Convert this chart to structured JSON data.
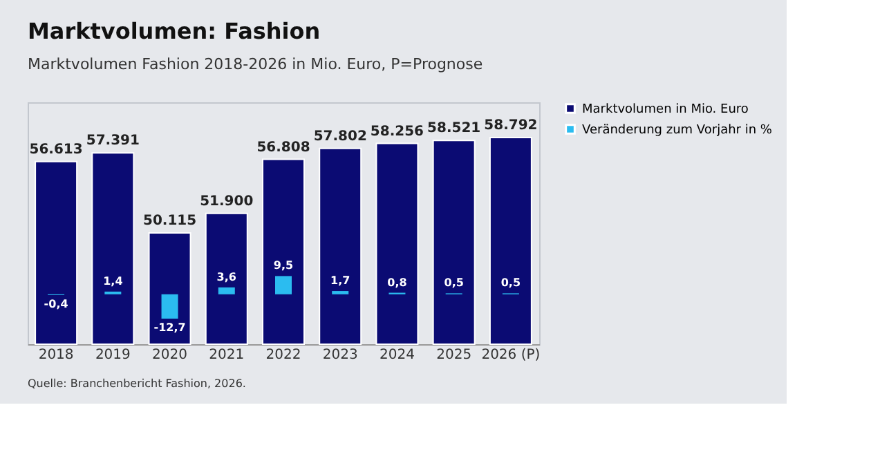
{
  "chart_data": {
    "type": "bar",
    "title": "Marktvolumen: Fashion",
    "subtitle": "Marktvolumen Fashion 2018-2026 in Mio. Euro, P=Prognose",
    "categories": [
      "2018",
      "2019",
      "2020",
      "2021",
      "2022",
      "2023",
      "2024",
      "2025",
      "2026 (P)"
    ],
    "series": [
      {
        "name": "Marktvolumen in Mio. Euro",
        "color": "#0b0b73",
        "values": [
          56613,
          57391,
          50115,
          51900,
          56808,
          57802,
          58256,
          58521,
          58792
        ],
        "value_labels": [
          "56.613",
          "57.391",
          "50.115",
          "51.900",
          "56.808",
          "57.802",
          "58.256",
          "58.521",
          "58.792"
        ]
      },
      {
        "name": "Veränderung zum Vorjahr in %",
        "color": "#2bbcf0",
        "axis": "y2",
        "values": [
          -0.4,
          1.4,
          -12.7,
          3.6,
          9.5,
          1.7,
          0.8,
          0.5,
          0.5
        ],
        "value_labels": [
          "-0,4",
          "1,4",
          "-12,7",
          "3,6",
          "9,5",
          "1,7",
          "0,8",
          "0,5",
          "0,5"
        ]
      }
    ],
    "ylim": [
      40000,
      62000
    ],
    "y2lim": [
      -26,
      100
    ],
    "tick_labels": "x",
    "grid": false,
    "legend": "right",
    "annotations": [
      "Quelle: Branchenbericht Fashion, 2026."
    ]
  }
}
